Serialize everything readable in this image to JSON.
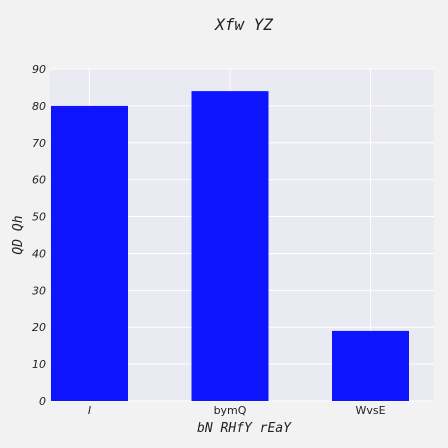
{
  "chart_data": {
    "type": "bar",
    "title": "Xfw YZ",
    "xlabel": "bN RHfY rEaY",
    "ylabel": "QD Qh",
    "categories": [
      "I",
      "bymQ",
      "WvsE"
    ],
    "values": [
      80,
      84,
      19
    ],
    "ylim": [
      0,
      90
    ],
    "yticks": [
      0,
      10,
      20,
      30,
      40,
      50,
      60,
      70,
      80,
      90
    ],
    "grid": true,
    "bar_color": "#0f14ff",
    "plot_background": "#eaeaf2",
    "grid_color": "#ffffff"
  }
}
